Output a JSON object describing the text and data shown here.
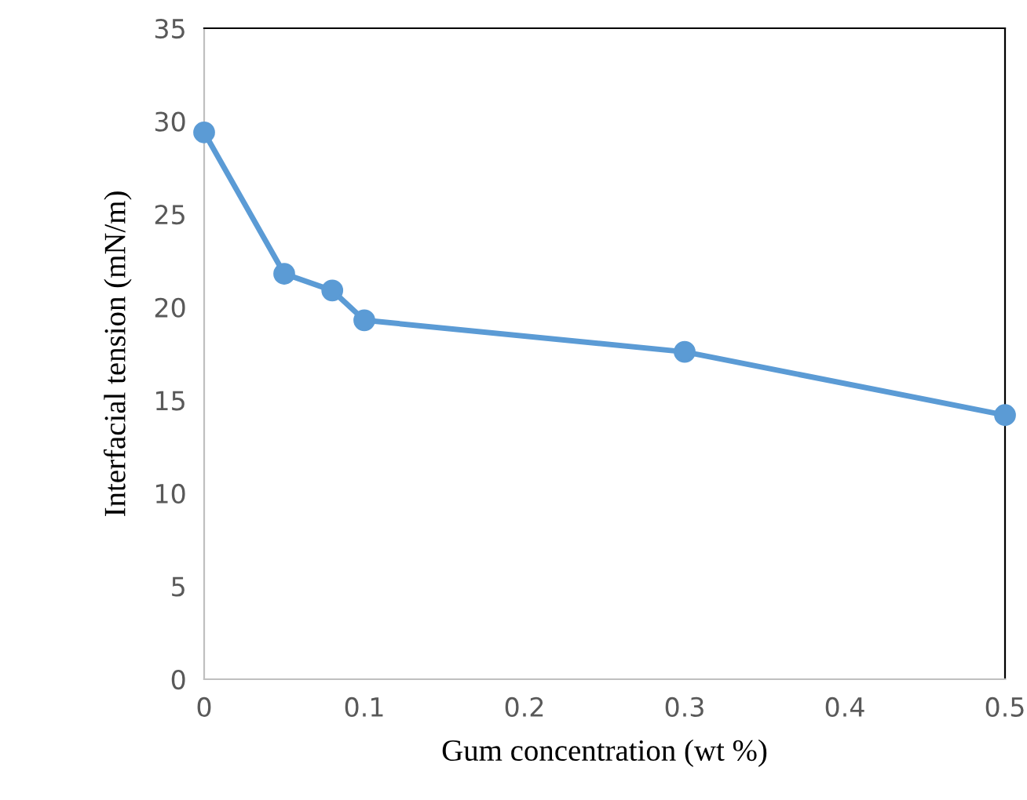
{
  "chart_data": {
    "type": "line",
    "xlabel": "Gum concentration (wt %)",
    "ylabel": "Interfacial tension (mN/m)",
    "x": [
      0,
      0.05,
      0.08,
      0.1,
      0.3,
      0.5
    ],
    "series": [
      {
        "color": "#5b9bd5",
        "values": [
          29.4,
          21.8,
          20.9,
          19.3,
          17.6,
          14.2
        ]
      }
    ],
    "xlim": [
      0,
      0.5
    ],
    "xticks": [
      0,
      0.1,
      0.2,
      0.3,
      0.4,
      0.5
    ],
    "ylim": [
      0,
      35
    ],
    "yticks": [
      0,
      5,
      10,
      15,
      20,
      25,
      30,
      35
    ],
    "grid": false,
    "legend": false,
    "marker": "circle",
    "line_style": "solid"
  }
}
